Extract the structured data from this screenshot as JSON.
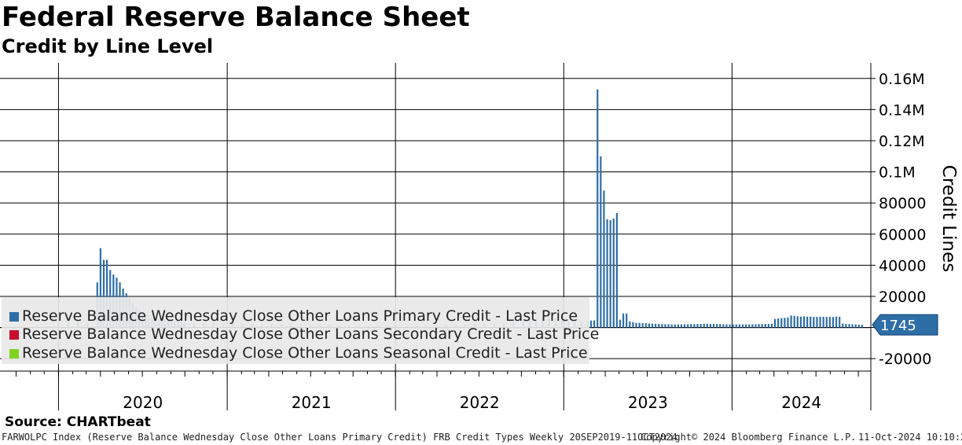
{
  "header": {
    "title": "Federal Reserve Balance Sheet",
    "subtitle": "Credit by Line Level"
  },
  "legend": {
    "items": [
      {
        "label": "Reserve Balance Wednesday Close Other Loans Primary Credit - Last Price",
        "color": "#2e6ea6"
      },
      {
        "label": "Reserve Balance Wednesday Close Other Loans Secondary Credit - Last Price",
        "color": "#c8102e"
      },
      {
        "label": "Reserve Balance Wednesday Close Other Loans Seasonal Credit - Last Price",
        "color": "#7ed321"
      }
    ]
  },
  "footer": {
    "source": "Source: CHARTbeat",
    "description": "FARWOLPC Index (Reserve Balance Wednesday Close Other Loans Primary Credit) FRB Credit Types  Weekly 20SEP2019-11OCT2024",
    "copyright": "Copyright© 2024 Bloomberg Finance L.P.",
    "timestamp": "11-Oct-2024 10:10:22"
  },
  "chart_data": {
    "type": "bar",
    "ylabel": "Credit Lines",
    "ylim": [
      -28000,
      170000
    ],
    "yticks": [
      -20000,
      0,
      20000,
      40000,
      60000,
      80000,
      100000,
      120000,
      140000,
      160000
    ],
    "ytick_labels": [
      "-20000",
      "",
      "20000",
      "40000",
      "60000",
      "80000",
      "0.1M",
      "0.12M",
      "0.14M",
      "0.16M"
    ],
    "x_range": [
      "2019-09-20",
      "2024-10-11"
    ],
    "year_labels": [
      "2020",
      "2021",
      "2022",
      "2023",
      "2024"
    ],
    "grid": true,
    "legend_placement": "bottom-left",
    "last_value": {
      "value": 1745,
      "label": "1745"
    },
    "series": [
      {
        "name": "Reserve Balance Wednesday Close Other Loans Primary Credit - Last Price",
        "color": "#2e6ea6",
        "points": [
          [
            "2020-01-22",
            4000
          ],
          [
            "2020-02-12",
            3500
          ],
          [
            "2020-03-04",
            3000
          ],
          [
            "2020-03-25",
            29000
          ],
          [
            "2020-04-01",
            51000
          ],
          [
            "2020-04-08",
            43500
          ],
          [
            "2020-04-15",
            43500
          ],
          [
            "2020-04-22",
            37000
          ],
          [
            "2020-04-29",
            34000
          ],
          [
            "2020-05-06",
            32000
          ],
          [
            "2020-05-13",
            29000
          ],
          [
            "2020-05-20",
            25000
          ],
          [
            "2020-05-27",
            22000
          ],
          [
            "2020-06-03",
            19000
          ],
          [
            "2020-06-10",
            16000
          ],
          [
            "2020-06-17",
            13000
          ],
          [
            "2020-06-24",
            11000
          ],
          [
            "2020-07-01",
            9500
          ],
          [
            "2020-07-08",
            8500
          ],
          [
            "2020-07-15",
            7500
          ],
          [
            "2020-07-22",
            6500
          ],
          [
            "2020-07-29",
            6000
          ],
          [
            "2020-08-05",
            5500
          ],
          [
            "2020-08-12",
            5000
          ],
          [
            "2020-08-19",
            4700
          ],
          [
            "2020-08-26",
            4500
          ],
          [
            "2020-09-02",
            4200
          ],
          [
            "2020-09-09",
            4000
          ],
          [
            "2020-09-16",
            3800
          ],
          [
            "2020-09-23",
            3600
          ],
          [
            "2020-09-30",
            3500
          ],
          [
            "2020-10-21",
            3200
          ],
          [
            "2020-11-11",
            3000
          ],
          [
            "2020-12-02",
            2800
          ],
          [
            "2020-12-23",
            2700
          ],
          [
            "2021-01-13",
            2600
          ],
          [
            "2021-02-03",
            2500
          ],
          [
            "2021-02-24",
            2400
          ],
          [
            "2021-03-17",
            2300
          ],
          [
            "2021-04-07",
            2200
          ],
          [
            "2021-04-28",
            2100
          ],
          [
            "2021-05-19",
            2000
          ],
          [
            "2021-06-09",
            1900
          ],
          [
            "2021-06-30",
            1800
          ],
          [
            "2021-07-21",
            1700
          ],
          [
            "2021-08-11",
            1600
          ],
          [
            "2021-09-01",
            1500
          ],
          [
            "2021-09-22",
            1400
          ],
          [
            "2021-10-13",
            1300
          ],
          [
            "2021-11-03",
            1200
          ],
          [
            "2021-11-24",
            1100
          ],
          [
            "2021-12-15",
            1000
          ],
          [
            "2022-01-05",
            1000
          ],
          [
            "2022-01-26",
            1100
          ],
          [
            "2022-02-16",
            1200
          ],
          [
            "2022-03-09",
            1300
          ],
          [
            "2022-03-30",
            1400
          ],
          [
            "2022-04-20",
            1500
          ],
          [
            "2022-05-11",
            1600
          ],
          [
            "2022-06-01",
            1800
          ],
          [
            "2022-06-22",
            2000
          ],
          [
            "2022-07-13",
            2300
          ],
          [
            "2022-08-03",
            2600
          ],
          [
            "2022-08-24",
            3000
          ],
          [
            "2022-09-14",
            3500
          ],
          [
            "2022-10-05",
            4000
          ],
          [
            "2022-10-19",
            4500
          ],
          [
            "2022-11-02",
            5000
          ],
          [
            "2022-11-16",
            6500
          ],
          [
            "2022-11-30",
            7000
          ],
          [
            "2022-12-14",
            6000
          ],
          [
            "2022-12-28",
            5000
          ],
          [
            "2023-01-11",
            4500
          ],
          [
            "2023-01-25",
            4000
          ],
          [
            "2023-02-08",
            4000
          ],
          [
            "2023-02-22",
            4200
          ],
          [
            "2023-03-01",
            4500
          ],
          [
            "2023-03-08",
            4600
          ],
          [
            "2023-03-15",
            153000
          ],
          [
            "2023-03-22",
            110000
          ],
          [
            "2023-03-29",
            88000
          ],
          [
            "2023-04-05",
            69500
          ],
          [
            "2023-04-12",
            69000
          ],
          [
            "2023-04-19",
            70000
          ],
          [
            "2023-04-26",
            73500
          ],
          [
            "2023-05-03",
            5000
          ],
          [
            "2023-05-10",
            9000
          ],
          [
            "2023-05-17",
            9000
          ],
          [
            "2023-05-24",
            4000
          ],
          [
            "2023-05-31",
            3500
          ],
          [
            "2023-06-07",
            3000
          ],
          [
            "2023-06-14",
            3000
          ],
          [
            "2023-06-21",
            2800
          ],
          [
            "2023-06-28",
            2700
          ],
          [
            "2023-07-05",
            2600
          ],
          [
            "2023-07-12",
            2500
          ],
          [
            "2023-07-19",
            2400
          ],
          [
            "2023-07-26",
            2300
          ],
          [
            "2023-08-02",
            2200
          ],
          [
            "2023-08-09",
            2100
          ],
          [
            "2023-08-16",
            2100
          ],
          [
            "2023-08-23",
            2000
          ],
          [
            "2023-08-30",
            2000
          ],
          [
            "2023-09-06",
            2000
          ],
          [
            "2023-09-13",
            2000
          ],
          [
            "2023-09-20",
            2100
          ],
          [
            "2023-09-27",
            2100
          ],
          [
            "2023-10-04",
            2200
          ],
          [
            "2023-10-11",
            2200
          ],
          [
            "2023-10-18",
            2300
          ],
          [
            "2023-10-25",
            2300
          ],
          [
            "2023-11-01",
            2400
          ],
          [
            "2023-11-08",
            2400
          ],
          [
            "2023-11-15",
            2300
          ],
          [
            "2023-11-22",
            2300
          ],
          [
            "2023-11-29",
            2200
          ],
          [
            "2023-12-06",
            2200
          ],
          [
            "2023-12-13",
            2100
          ],
          [
            "2023-12-20",
            2000
          ],
          [
            "2023-12-27",
            2000
          ],
          [
            "2024-01-03",
            2000
          ],
          [
            "2024-01-10",
            2000
          ],
          [
            "2024-01-17",
            2000
          ],
          [
            "2024-01-24",
            2000
          ],
          [
            "2024-01-31",
            2000
          ],
          [
            "2024-02-07",
            2000
          ],
          [
            "2024-02-14",
            2100
          ],
          [
            "2024-02-21",
            2100
          ],
          [
            "2024-02-28",
            2200
          ],
          [
            "2024-03-06",
            2200
          ],
          [
            "2024-03-13",
            2300
          ],
          [
            "2024-03-20",
            2300
          ],
          [
            "2024-03-27",
            2400
          ],
          [
            "2024-04-03",
            5500
          ],
          [
            "2024-04-10",
            5800
          ],
          [
            "2024-04-17",
            6000
          ],
          [
            "2024-04-24",
            6200
          ],
          [
            "2024-05-01",
            6500
          ],
          [
            "2024-05-08",
            7800
          ],
          [
            "2024-05-15",
            7500
          ],
          [
            "2024-05-22",
            7200
          ],
          [
            "2024-05-29",
            7000
          ],
          [
            "2024-06-05",
            7200
          ],
          [
            "2024-06-12",
            7000
          ],
          [
            "2024-06-19",
            7000
          ],
          [
            "2024-06-26",
            6800
          ],
          [
            "2024-07-03",
            6800
          ],
          [
            "2024-07-10",
            6900
          ],
          [
            "2024-07-17",
            6900
          ],
          [
            "2024-07-24",
            6800
          ],
          [
            "2024-07-31",
            6800
          ],
          [
            "2024-08-07",
            6800
          ],
          [
            "2024-08-14",
            7000
          ],
          [
            "2024-08-21",
            6900
          ],
          [
            "2024-08-28",
            2600
          ],
          [
            "2024-09-04",
            2300
          ],
          [
            "2024-09-11",
            2200
          ],
          [
            "2024-09-18",
            2100
          ],
          [
            "2024-09-25",
            2000
          ],
          [
            "2024-10-02",
            1800
          ],
          [
            "2024-10-09",
            1745
          ]
        ]
      },
      {
        "name": "Reserve Balance Wednesday Close Other Loans Secondary Credit - Last Price",
        "color": "#c8102e",
        "points": []
      },
      {
        "name": "Reserve Balance Wednesday Close Other Loans Seasonal Credit - Last Price",
        "color": "#7ed321",
        "points": []
      }
    ]
  }
}
